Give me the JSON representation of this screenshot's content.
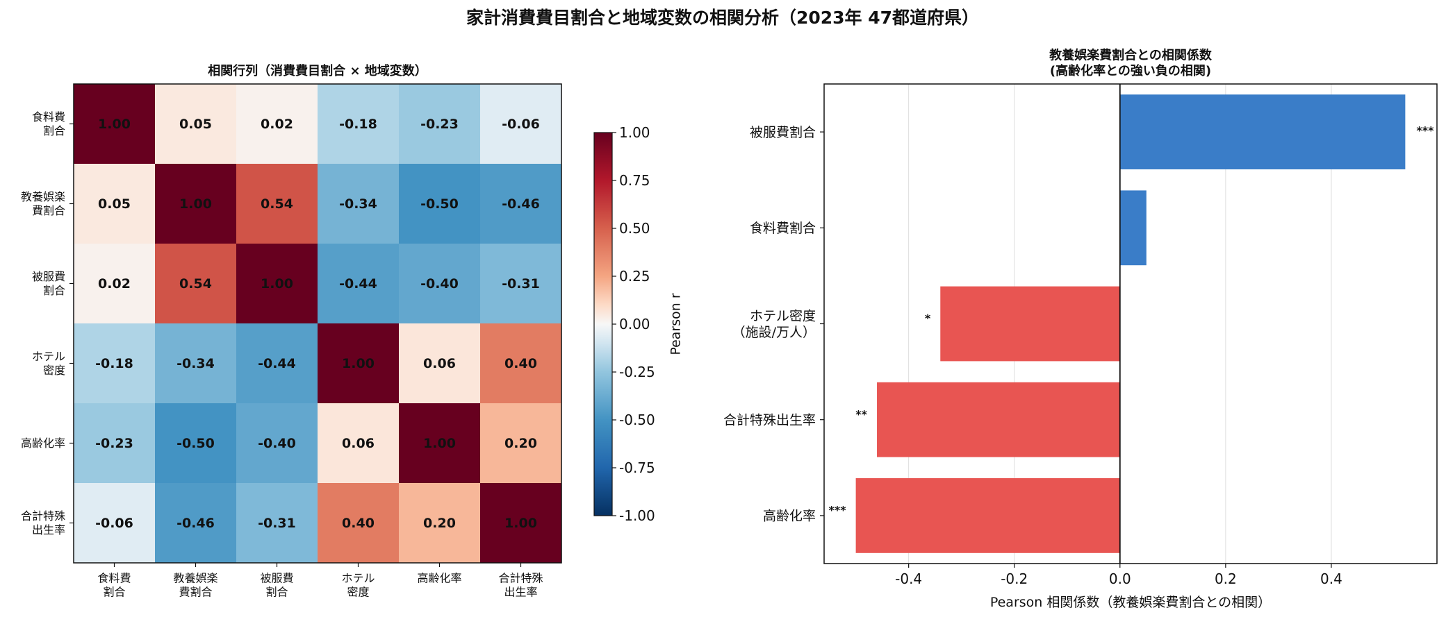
{
  "figure": {
    "title": "家計消費費目割合と地域変数の相関分析（2023年 47都道府県）"
  },
  "chart_data": [
    {
      "type": "heatmap",
      "title": "相関行列（消費費目割合 × 地域変数）",
      "rows": [
        "食料費\n割合",
        "教養娯楽\n費割合",
        "被服費\n割合",
        "ホテル\n密度",
        "高齢化率",
        "合計特殊\n出生率"
      ],
      "columns": [
        "食料費\n割合",
        "教養娯楽\n費割合",
        "被服費\n割合",
        "ホテル\n密度",
        "高齢化率",
        "合計特殊\n出生率"
      ],
      "values": [
        [
          1.0,
          0.05,
          0.02,
          -0.18,
          -0.23,
          -0.06
        ],
        [
          0.05,
          1.0,
          0.54,
          -0.34,
          -0.5,
          -0.46
        ],
        [
          0.02,
          0.54,
          1.0,
          -0.44,
          -0.4,
          -0.31
        ],
        [
          -0.18,
          -0.34,
          -0.44,
          1.0,
          0.06,
          0.4
        ],
        [
          -0.23,
          -0.5,
          -0.4,
          0.06,
          1.0,
          0.2
        ],
        [
          -0.06,
          -0.46,
          -0.31,
          0.4,
          0.2,
          1.0
        ]
      ],
      "value_format": "2 decimals",
      "colormap": "RdBu_r",
      "colorbar": {
        "label": "Pearson r",
        "range": [
          -1.0,
          1.0
        ],
        "ticks": [
          "1.00",
          "0.75",
          "0.50",
          "0.25",
          "0.00",
          "-0.25",
          "-0.50",
          "-0.75",
          "-1.00"
        ]
      }
    },
    {
      "type": "bar",
      "orientation": "horizontal",
      "title": "教養娯楽費割合との相関係数\n(高齢化率との強い負の相関)",
      "categories": [
        "被服費割合",
        "食料費割合",
        "ホテル密度\n（施設/万人）",
        "合計特殊出生率",
        "高齢化率"
      ],
      "values": [
        0.54,
        0.05,
        -0.34,
        -0.46,
        -0.5
      ],
      "significance": [
        "***",
        "",
        "*",
        "**",
        "***"
      ],
      "xlabel": "Pearson 相関係数（教養娯楽費割合との相関）",
      "xlim": [
        -0.56,
        0.6
      ],
      "xticks": [
        "-0.4",
        "-0.2",
        "0.0",
        "0.2",
        "0.4"
      ],
      "grid": "x",
      "colors": {
        "positive": "#3a7dc8",
        "negative": "#e85552"
      }
    }
  ]
}
